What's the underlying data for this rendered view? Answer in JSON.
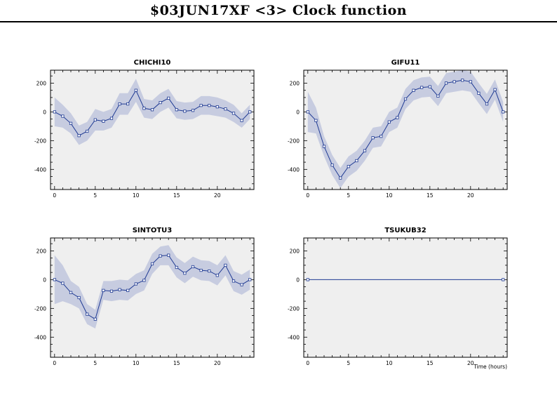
{
  "page": {
    "title": "$03JUN17XF <3>  Clock function"
  },
  "chart_data": [
    {
      "type": "line",
      "title": "CHICHI10",
      "xlabel": "",
      "ylabel": "",
      "xlim": [
        -0.5,
        24.5
      ],
      "ylim": [
        -540,
        290
      ],
      "xticks": [
        0,
        5,
        10,
        15,
        20
      ],
      "yticks": [
        -400,
        -200,
        0,
        200
      ],
      "x": [
        0,
        1,
        2,
        3,
        4,
        5,
        6,
        7,
        8,
        9,
        10,
        11,
        12,
        13,
        14,
        15,
        16,
        17,
        18,
        19,
        20,
        21,
        22,
        23,
        24
      ],
      "series": [
        {
          "values": [
            0,
            -30,
            -80,
            -165,
            -135,
            -55,
            -65,
            -45,
            55,
            55,
            150,
            25,
            15,
            65,
            95,
            15,
            5,
            10,
            45,
            45,
            35,
            20,
            -10,
            -60,
            0
          ],
          "lower": [
            -100,
            -110,
            -150,
            -230,
            -200,
            -130,
            -130,
            -110,
            -20,
            -20,
            70,
            -40,
            -50,
            0,
            30,
            -45,
            -55,
            -50,
            -20,
            -20,
            -30,
            -40,
            -70,
            -110,
            -50
          ],
          "upper": [
            100,
            50,
            -10,
            -95,
            -70,
            20,
            0,
            20,
            130,
            130,
            230,
            90,
            80,
            130,
            160,
            75,
            65,
            70,
            110,
            110,
            100,
            80,
            50,
            -10,
            50
          ]
        }
      ],
      "colors": {
        "line": "#1f3a93",
        "band": "#c7cce0",
        "plot_bg": "#efefef"
      }
    },
    {
      "type": "line",
      "title": "GIFU11",
      "xlabel": "",
      "ylabel": "",
      "xlim": [
        -0.5,
        24.5
      ],
      "ylim": [
        -540,
        290
      ],
      "xticks": [
        0,
        5,
        10,
        15,
        20
      ],
      "yticks": [
        -400,
        -200,
        0,
        200
      ],
      "x": [
        0,
        1,
        2,
        3,
        4,
        5,
        6,
        7,
        8,
        9,
        10,
        11,
        12,
        13,
        14,
        15,
        16,
        17,
        18,
        19,
        20,
        21,
        22,
        23,
        24
      ],
      "series": [
        {
          "values": [
            0,
            -60,
            -240,
            -370,
            -460,
            -380,
            -340,
            -270,
            -180,
            -170,
            -70,
            -40,
            90,
            150,
            170,
            175,
            110,
            200,
            210,
            220,
            210,
            130,
            55,
            155,
            0
          ],
          "lower": [
            -140,
            -150,
            -310,
            -440,
            -530,
            -450,
            -410,
            -340,
            -250,
            -240,
            -140,
            -110,
            20,
            80,
            100,
            105,
            40,
            130,
            140,
            150,
            140,
            60,
            -15,
            85,
            -70
          ],
          "upper": [
            140,
            30,
            -170,
            -300,
            -390,
            -310,
            -270,
            -200,
            -110,
            -100,
            0,
            30,
            160,
            220,
            240,
            245,
            180,
            270,
            280,
            290,
            280,
            200,
            125,
            225,
            70
          ]
        }
      ],
      "colors": {
        "line": "#1f3a93",
        "band": "#c7cce0",
        "plot_bg": "#efefef"
      }
    },
    {
      "type": "line",
      "title": "SINTOTU3",
      "xlabel": "",
      "ylabel": "",
      "xlim": [
        -0.5,
        24.5
      ],
      "ylim": [
        -540,
        290
      ],
      "xticks": [
        0,
        5,
        10,
        15,
        20
      ],
      "yticks": [
        -400,
        -200,
        0,
        200
      ],
      "x": [
        0,
        1,
        2,
        3,
        4,
        5,
        6,
        7,
        8,
        9,
        10,
        11,
        12,
        13,
        14,
        15,
        16,
        17,
        18,
        19,
        20,
        21,
        22,
        23,
        24
      ],
      "series": [
        {
          "values": [
            0,
            -25,
            -90,
            -125,
            -240,
            -275,
            -75,
            -80,
            -70,
            -75,
            -30,
            -5,
            110,
            165,
            170,
            85,
            45,
            90,
            65,
            60,
            30,
            100,
            -10,
            -35,
            0
          ],
          "lower": [
            -170,
            -150,
            -170,
            -200,
            -310,
            -340,
            -140,
            -150,
            -140,
            -145,
            -100,
            -75,
            40,
            100,
            100,
            15,
            -25,
            20,
            -5,
            -10,
            -40,
            30,
            -80,
            -105,
            -70
          ],
          "upper": [
            170,
            100,
            -10,
            -50,
            -170,
            -210,
            -10,
            -10,
            0,
            -5,
            40,
            65,
            180,
            230,
            240,
            155,
            115,
            160,
            135,
            130,
            100,
            170,
            60,
            35,
            70
          ]
        }
      ],
      "colors": {
        "line": "#1f3a93",
        "band": "#c7cce0",
        "plot_bg": "#efefef"
      }
    },
    {
      "type": "line",
      "title": "TSUKUB32",
      "xlabel": "Time (hours)",
      "ylabel": "",
      "xlim": [
        -0.5,
        24.5
      ],
      "ylim": [
        -540,
        290
      ],
      "xticks": [
        0,
        5,
        10,
        15,
        20
      ],
      "yticks": [
        -400,
        -200,
        0,
        200
      ],
      "x": [
        0,
        24
      ],
      "series": [
        {
          "values": [
            0,
            0
          ]
        }
      ],
      "colors": {
        "line": "#1f3a93",
        "band": "#c7cce0",
        "plot_bg": "#efefef"
      }
    }
  ]
}
